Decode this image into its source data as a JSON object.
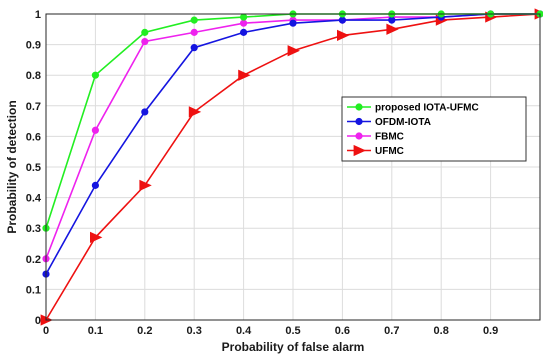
{
  "chart_data": {
    "type": "line",
    "xlabel": "Probability of false alarm",
    "ylabel": "Probability of detection",
    "xlim": [
      0,
      1
    ],
    "ylim": [
      0,
      1
    ],
    "xticks": [
      "0",
      "0.1",
      "0.2",
      "0.3",
      "0.4",
      "0.5",
      "0.6",
      "0.7",
      "0.8",
      "0.9",
      ""
    ],
    "yticks": [
      "0",
      "0.1",
      "0.2",
      "0.3",
      "0.4",
      "0.5",
      "0.6",
      "0.7",
      "0.8",
      "0.9",
      "1"
    ],
    "grid": true,
    "legend_position": "center-right",
    "x": [
      0,
      0.1,
      0.2,
      0.3,
      0.4,
      0.5,
      0.6,
      0.7,
      0.8,
      0.9,
      1.0
    ],
    "series": [
      {
        "name": "proposed IOTA-UFMC",
        "color": "#22ee22",
        "marker": "circle",
        "values": [
          0.3,
          0.8,
          0.94,
          0.98,
          0.99,
          1.0,
          1.0,
          1.0,
          1.0,
          1.0,
          1.0
        ]
      },
      {
        "name": "OFDM-IOTA",
        "color": "#1515e0",
        "marker": "circle",
        "values": [
          0.15,
          0.44,
          0.68,
          0.89,
          0.94,
          0.97,
          0.98,
          0.98,
          0.99,
          1.0,
          1.0
        ]
      },
      {
        "name": "FBMC",
        "color": "#ee22ee",
        "marker": "circle",
        "values": [
          0.2,
          0.62,
          0.91,
          0.94,
          0.97,
          0.98,
          0.98,
          0.99,
          0.99,
          1.0,
          1.0
        ]
      },
      {
        "name": "UFMC",
        "color": "#ee1111",
        "marker": "triangle-right",
        "values": [
          0.0,
          0.27,
          0.44,
          0.68,
          0.8,
          0.88,
          0.93,
          0.95,
          0.98,
          0.99,
          1.0
        ]
      }
    ]
  }
}
